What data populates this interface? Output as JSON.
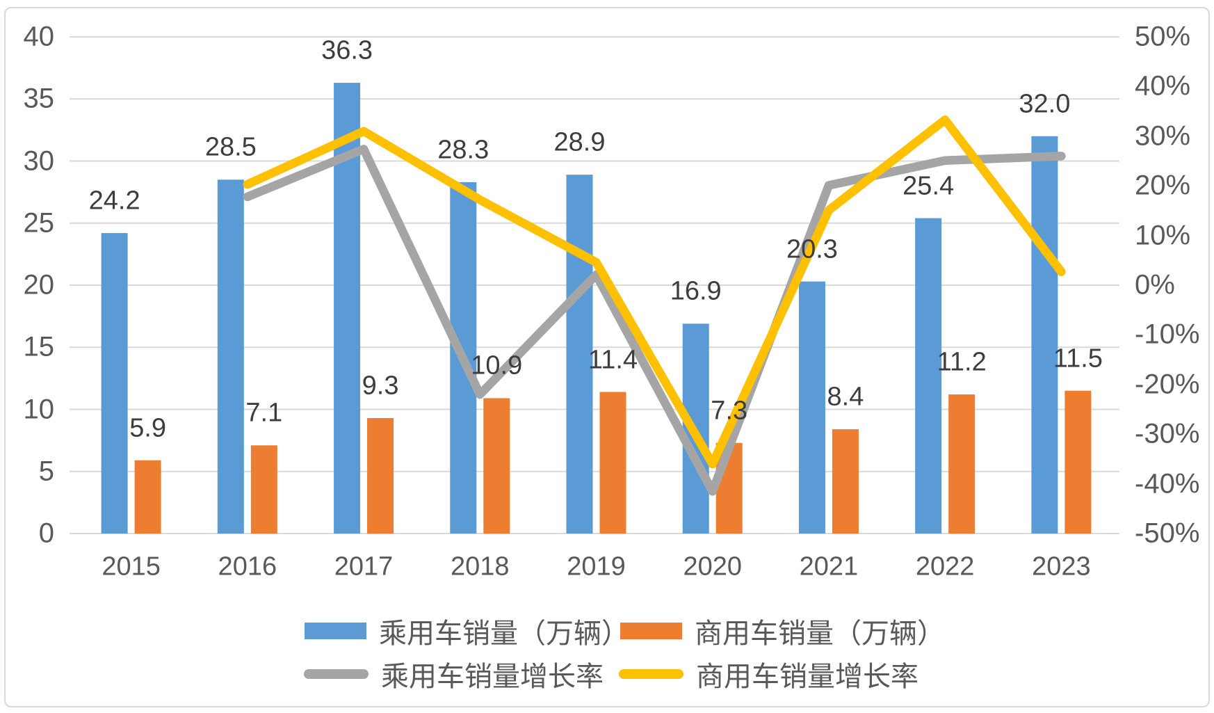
{
  "chart_data": {
    "type": "combo-bar-line",
    "title": "",
    "categories": [
      "2015",
      "2016",
      "2017",
      "2018",
      "2019",
      "2020",
      "2021",
      "2022",
      "2023"
    ],
    "bar_series": [
      {
        "name": "乘用车销量（万辆）",
        "color": "#5B9BD5",
        "values": [
          24.2,
          28.5,
          36.3,
          28.3,
          28.9,
          16.9,
          20.3,
          25.4,
          32.0
        ],
        "labels": [
          "24.2",
          "28.5",
          "36.3",
          "28.3",
          "28.9",
          "16.9",
          "20.3",
          "25.4",
          "32.0"
        ]
      },
      {
        "name": "商用车销量（万辆）",
        "color": "#ED7D31",
        "values": [
          5.9,
          7.1,
          9.3,
          10.9,
          11.4,
          7.3,
          8.4,
          11.2,
          11.5
        ],
        "labels": [
          "5.9",
          "7.1",
          "9.3",
          "10.9",
          "11.4",
          "7.3",
          "8.4",
          "11.2",
          "11.5"
        ]
      }
    ],
    "line_series": [
      {
        "name": "乘用车销量增长率",
        "color": "#A5A5A5",
        "values_pct": [
          null,
          17.8,
          27.4,
          -22.0,
          2.1,
          -41.5,
          20.1,
          25.1,
          26.0
        ]
      },
      {
        "name": "商用车销量增长率",
        "color": "#FFC000",
        "values_pct": [
          null,
          20.3,
          31.0,
          17.2,
          4.6,
          -36.0,
          15.1,
          33.3,
          2.7
        ]
      }
    ],
    "left_axis": {
      "min": 0,
      "max": 40,
      "step": 5,
      "ticks": [
        "0",
        "5",
        "10",
        "15",
        "20",
        "25",
        "30",
        "35",
        "40"
      ],
      "tick_values": [
        0,
        5,
        10,
        15,
        20,
        25,
        30,
        35,
        40
      ]
    },
    "right_axis": {
      "min": -50,
      "max": 50,
      "step": 10,
      "ticks": [
        "50%",
        "40%",
        "30%",
        "20%",
        "10%",
        "0%",
        "-10%",
        "-20%",
        "-30%",
        "-40%",
        "-50%"
      ],
      "tick_values": [
        50,
        40,
        30,
        20,
        10,
        0,
        -10,
        -20,
        -30,
        -40,
        -50
      ]
    },
    "grid": true,
    "legend_position": "bottom"
  },
  "colors": {
    "gridline": "#D9D9D9",
    "axis_text": "#595959",
    "data_label_text": "#3d3d3d",
    "frame_border": "#D9D9D9",
    "background": "#FFFFFF"
  }
}
